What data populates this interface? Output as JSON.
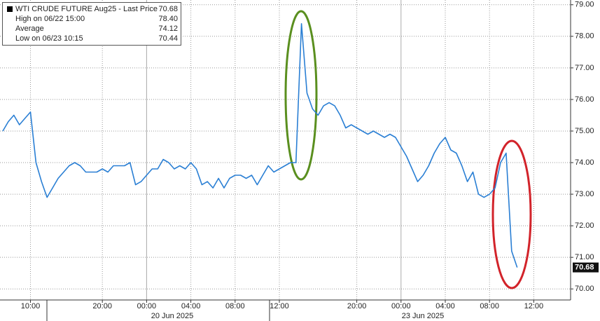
{
  "chart_data": {
    "type": "line",
    "categories": [
      null,
      null,
      null,
      null,
      null,
      "10:00",
      null,
      null,
      null,
      null,
      null,
      null,
      null,
      null,
      null,
      null,
      null,
      null,
      "20:00",
      null,
      null,
      null,
      null,
      null,
      null,
      null,
      "00:00",
      null,
      null,
      null,
      null,
      null,
      null,
      null,
      "04:00",
      null,
      null,
      null,
      null,
      null,
      null,
      null,
      "08:00",
      null,
      null,
      null,
      null,
      null,
      null,
      null,
      "12:00",
      null,
      null,
      null,
      null,
      null,
      null,
      null,
      null,
      null,
      null,
      null,
      null,
      null,
      "20:00",
      null,
      null,
      null,
      null,
      null,
      null,
      null,
      "00:00",
      null,
      null,
      null,
      null,
      null,
      null,
      null,
      "04:00",
      null,
      null,
      null,
      null,
      null,
      null,
      null,
      "08:00",
      null,
      null,
      null,
      null,
      null,
      null,
      null,
      "12:00"
    ],
    "series": [
      {
        "name": "WTI CRUDE FUTURE Aug25",
        "color": "#2a7fd4",
        "values": [
          75.0,
          75.3,
          75.5,
          75.2,
          75.4,
          75.6,
          74.0,
          73.4,
          72.9,
          73.2,
          73.5,
          73.7,
          73.9,
          74.0,
          73.9,
          73.7,
          73.7,
          73.7,
          73.8,
          73.7,
          73.9,
          73.9,
          73.9,
          74.0,
          73.3,
          73.4,
          73.6,
          73.8,
          73.8,
          74.1,
          74.0,
          73.8,
          73.9,
          73.8,
          74.0,
          73.8,
          73.3,
          73.4,
          73.2,
          73.5,
          73.2,
          73.5,
          73.6,
          73.6,
          73.5,
          73.6,
          73.3,
          73.6,
          73.9,
          73.7,
          73.8,
          73.9,
          74.0,
          74.0,
          78.4,
          76.2,
          75.7,
          75.5,
          75.8,
          75.9,
          75.8,
          75.5,
          75.1,
          75.2,
          75.1,
          75.0,
          74.9,
          75.0,
          74.9,
          74.8,
          74.9,
          74.8,
          74.5,
          74.2,
          73.8,
          73.4,
          73.6,
          73.9,
          74.3,
          74.6,
          74.8,
          74.4,
          74.3,
          73.9,
          73.4,
          73.7,
          73.0,
          72.9,
          73.0,
          73.2,
          74.0,
          74.3,
          71.2,
          70.68,
          null,
          null,
          null
        ]
      }
    ],
    "date_labels": [
      "20 Jun 2025",
      "23 Jun 2025"
    ],
    "ylim": [
      69.65,
      79.15
    ],
    "yticks": [
      {
        "value": 70,
        "label": "70.00"
      },
      {
        "value": 71,
        "label": "71.00"
      },
      {
        "value": 72,
        "label": "72.00"
      },
      {
        "value": 73,
        "label": "73.00"
      },
      {
        "value": 74,
        "label": "74.00"
      },
      {
        "value": 75,
        "label": "75.00"
      },
      {
        "value": 76,
        "label": "76.00"
      },
      {
        "value": 77,
        "label": "77.00"
      },
      {
        "value": 78,
        "label": "78.00"
      },
      {
        "value": 79,
        "label": "79.00"
      }
    ],
    "grid": true,
    "legend_box": [
      {
        "label": "WTI CRUDE FUTURE Aug25 - Last Price",
        "value": "70.68"
      },
      {
        "label": "High on 06/22 15:00",
        "value": "78.40"
      },
      {
        "label": "Average",
        "value": "74.12"
      },
      {
        "label": "Low on 06/23 10:15",
        "value": "70.44"
      }
    ]
  }
}
